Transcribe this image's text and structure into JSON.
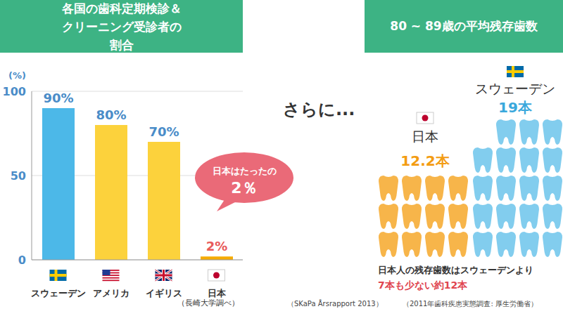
{
  "chart_data": [
    {
      "type": "bar",
      "title": "各国の歯科定期検診＆クリーニング受診者の割合",
      "y_label": "(%)",
      "categories": [
        "スウェーデン",
        "アメリカ",
        "イギリス",
        "日本"
      ],
      "values": [
        90,
        80,
        70,
        2
      ],
      "value_labels": [
        "90%",
        "80%",
        "70%",
        "2%"
      ],
      "colors": [
        "#4cb8e8",
        "#fcd23c",
        "#fcd23c",
        "#f6ab00"
      ],
      "ylim": [
        0,
        100
      ],
      "yticks": [
        0,
        50,
        100
      ],
      "grid": true,
      "data_labels": true,
      "annotation": [
        "日本はたったの",
        "2％"
      ],
      "source": "（長崎大学調べ）"
    },
    {
      "type": "pictogram",
      "title": "80 ~ 89歳の平均残存歯数",
      "intro": "さらに...",
      "categories": [
        "日本",
        "スウェーデン"
      ],
      "values": [
        12.2,
        19
      ],
      "value_labels": [
        "12.2本",
        "19本"
      ],
      "colors": [
        "#f7b54a",
        "#82cdee"
      ],
      "data_labels": true,
      "annotation": [
        "日本人の残存歯数はスウェーデンより",
        "7本も少ない約12本"
      ],
      "source": [
        "（SKaPa Årsrapport 2013）",
        "（2011年歯科疾患実態調査: 厚生労働省）"
      ]
    }
  ]
}
